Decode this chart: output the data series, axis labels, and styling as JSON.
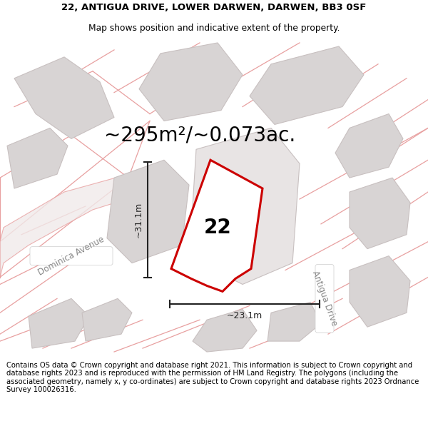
{
  "title_line1": "22, ANTIGUA DRIVE, LOWER DARWEN, DARWEN, BB3 0SF",
  "title_line2": "Map shows position and indicative extent of the property.",
  "area_text": "~295m²/~0.073ac.",
  "label_22": "22",
  "dim_vertical": "~31.1m",
  "dim_horizontal": "~23.1m",
  "street_dominica": "Dominica Avenue",
  "street_antigua": "Antigua Drive",
  "footer_text": "Contains OS data © Crown copyright and database right 2021. This information is subject to Crown copyright and database rights 2023 and is reproduced with the permission of HM Land Registry. The polygons (including the associated geometry, namely x, y co-ordinates) are subject to Crown copyright and database rights 2023 Ordnance Survey 100026316.",
  "bg_color": "#ffffff",
  "map_bg": "#f7f4f4",
  "road_fill": "#e8d8d8",
  "building_fill": "#d8d4d4",
  "building_edge": "#c8c0c0",
  "boundary_color": "#e8a0a0",
  "plot_fill": "#ffffff",
  "plot_edge_color": "#cc0000",
  "dim_color": "#222222",
  "text_color": "#000000",
  "street_color": "#aaaaaa",
  "title_fontsize": 9.5,
  "subtitle_fontsize": 8.8,
  "area_fontsize": 20,
  "label_fontsize": 20,
  "street_fontsize": 8.5,
  "footer_fontsize": 7.2,
  "dim_fontsize": 9
}
